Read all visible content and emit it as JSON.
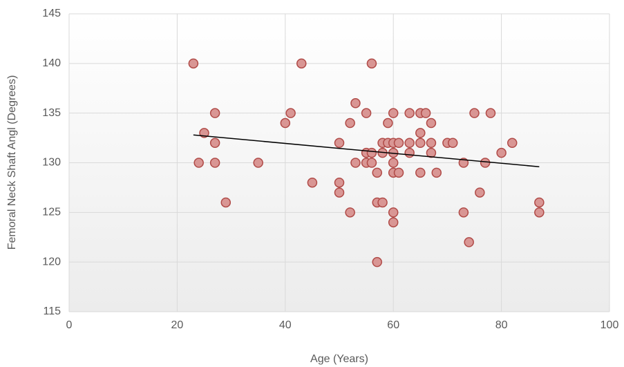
{
  "chart_data": {
    "type": "scatter",
    "x_label": "Age (Years)",
    "y_label": "Femoral Neck Shaft Angl (Degrees)",
    "xlim": [
      0,
      100
    ],
    "xticks": [
      0,
      20,
      40,
      60,
      80,
      100
    ],
    "ylim": [
      115,
      145
    ],
    "yticks": [
      115,
      120,
      125,
      130,
      135,
      140,
      145
    ],
    "grid": true,
    "series": [
      {
        "color": "#d99694",
        "x": [
          23,
          24,
          25,
          27,
          27,
          27,
          29,
          35,
          40,
          41,
          43,
          45,
          50,
          50,
          50,
          52,
          52,
          53,
          53,
          55,
          55,
          55,
          56,
          56,
          56,
          57,
          57,
          57,
          58,
          58,
          58,
          59,
          59,
          60,
          60,
          60,
          60,
          60,
          60,
          60,
          61,
          61,
          63,
          63,
          63,
          65,
          65,
          65,
          65,
          66,
          67,
          67,
          67,
          68,
          70,
          71,
          73,
          73,
          74,
          75,
          76,
          77,
          78,
          80,
          82,
          87,
          87
        ],
        "values": [
          140,
          130,
          133,
          135,
          132,
          130,
          126,
          130,
          134,
          135,
          140,
          128,
          132,
          128,
          127,
          134,
          125,
          136,
          130,
          135,
          131,
          130,
          140,
          131,
          130,
          129,
          126,
          120,
          132,
          131,
          126,
          134,
          132,
          135,
          132,
          131,
          130,
          129,
          125,
          124,
          132,
          129,
          135,
          132,
          131,
          135,
          133,
          132,
          129,
          135,
          134,
          132,
          131,
          129,
          132,
          132,
          130,
          125,
          122,
          135,
          127,
          130,
          135,
          131,
          132,
          126,
          125
        ]
      }
    ],
    "trendline": {
      "x": [
        23,
        87
      ],
      "values": [
        132.8,
        129.6
      ]
    }
  }
}
